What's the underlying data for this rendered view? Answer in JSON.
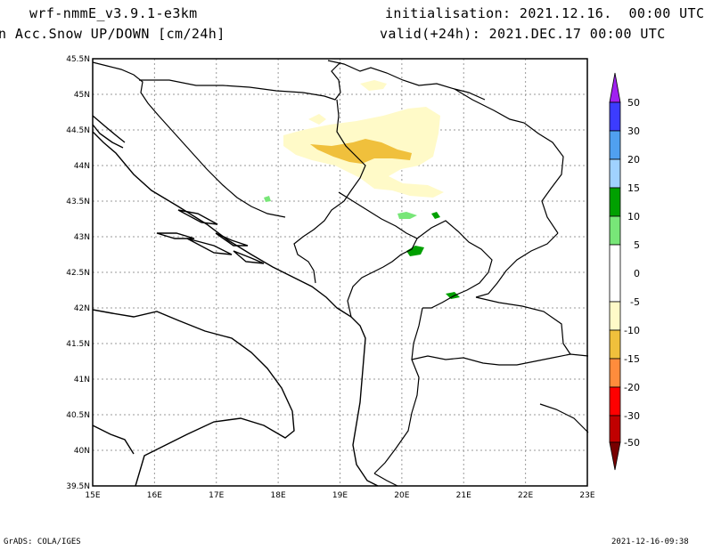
{
  "header": {
    "model": "wrf-nmmE_v3.9.1-e3km",
    "field": "n Acc.Snow UP/DOWN [cm/24h]",
    "init": "initialisation: 2021.12.16.  00:00 UTC",
    "valid": "valid(+24h): 2021.DEC.17 00:00 UTC"
  },
  "footer": {
    "credit": "GrADS: COLA/IGES",
    "timestamp": "2021-12-16-09:38"
  },
  "map": {
    "lon_labels": [
      "15E",
      "16E",
      "17E",
      "18E",
      "19E",
      "20E",
      "21E",
      "22E",
      "23E"
    ],
    "lat_labels": [
      "39.5N",
      "40N",
      "40.5N",
      "41N",
      "41.5N",
      "42N",
      "42.5N",
      "43N",
      "43.5N",
      "44N",
      "44.5N",
      "45N",
      "45.5N"
    ]
  },
  "colorbar": {
    "labels": [
      "50",
      "30",
      "20",
      "15",
      "10",
      "5",
      "0",
      "-5",
      "-10",
      "-15",
      "-20",
      "-30",
      "-50"
    ],
    "colors": {
      "gt50": "#a020f0",
      "30_50": "#3c3cff",
      "20_30": "#50a0f0",
      "15_20": "#a0d2ff",
      "10_15": "#00a000",
      "5_10": "#78e678",
      "m5_5": "#ffffff",
      "m10_m5": "#fffac8",
      "m15_m10": "#f0c03c",
      "m20_m15": "#ff8c3c",
      "m30_m20": "#ff0000",
      "m50_m30": "#c00000",
      "lt_m50": "#780000"
    }
  }
}
